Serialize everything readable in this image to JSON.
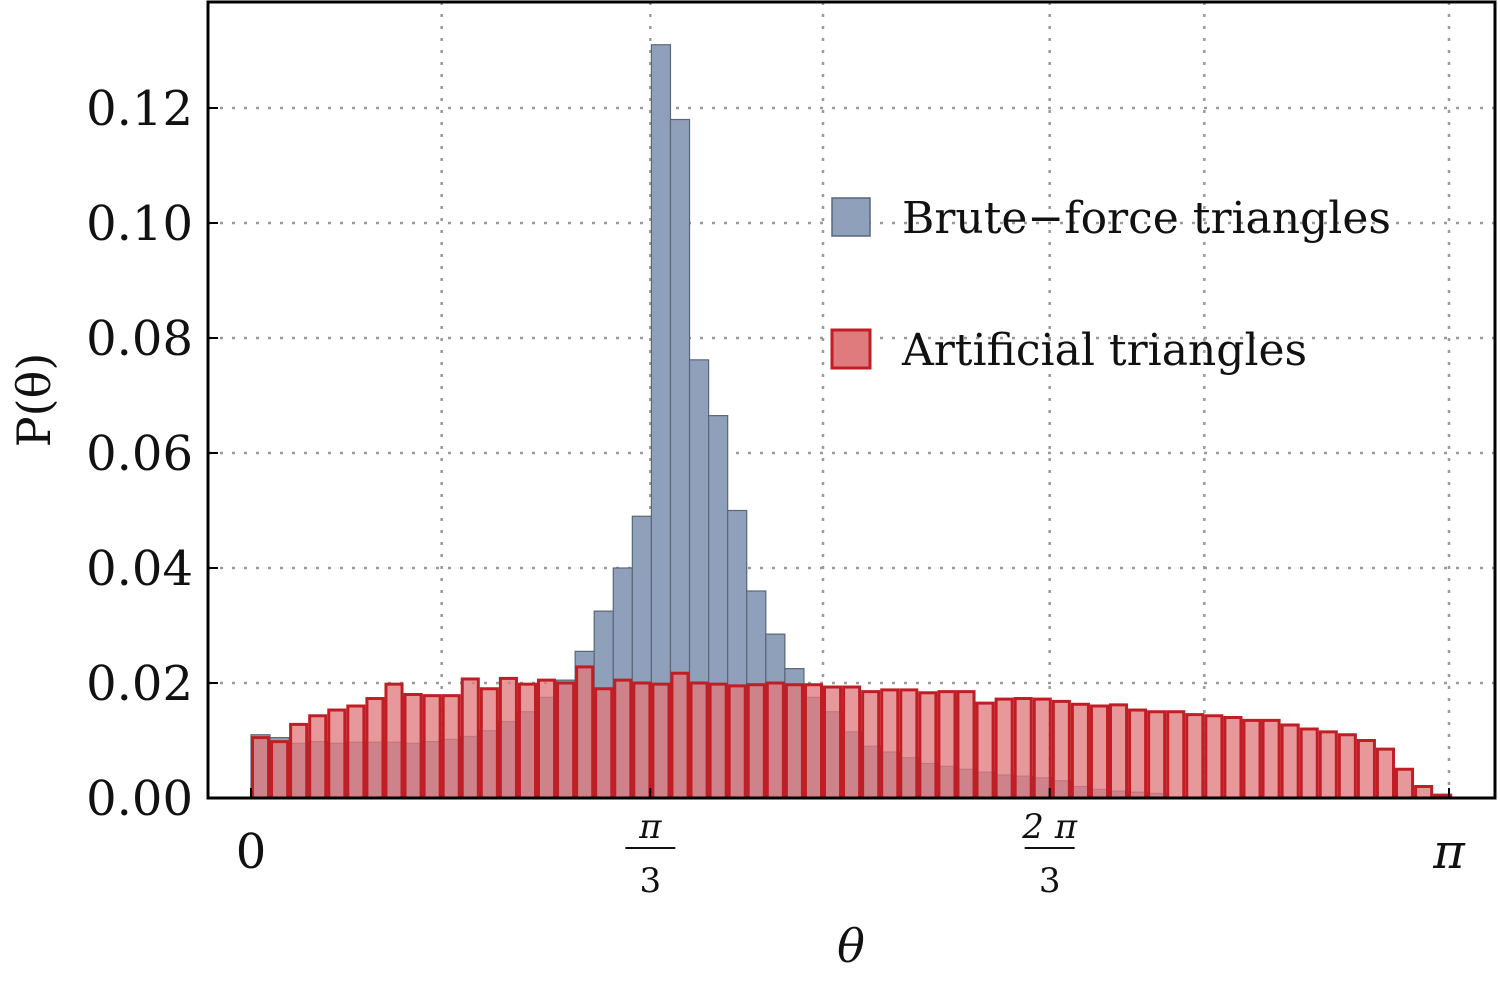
{
  "chart_data": {
    "type": "bar",
    "title": "",
    "xlabel": "θ",
    "ylabel": "P(θ)",
    "xlim": [
      0,
      3.1416
    ],
    "ylim": [
      0,
      0.138
    ],
    "bin_width": 0.05,
    "grid": true,
    "legend_position": "upper-right",
    "x_ticks": [
      {
        "value": 0,
        "label": "0"
      },
      {
        "value": 1.0472,
        "num": "π",
        "den": "3"
      },
      {
        "value": 2.0944,
        "num": "2 π",
        "den": "3"
      },
      {
        "value": 3.1416,
        "label": "π"
      }
    ],
    "y_ticks": [
      {
        "value": 0.0,
        "label": "0.00"
      },
      {
        "value": 0.02,
        "label": "0.02"
      },
      {
        "value": 0.04,
        "label": "0.04"
      },
      {
        "value": 0.06,
        "label": "0.06"
      },
      {
        "value": 0.08,
        "label": "0.08"
      },
      {
        "value": 0.1,
        "label": "0.10"
      },
      {
        "value": 0.12,
        "label": "0.12"
      }
    ],
    "series": [
      {
        "name": "Brute−force triangles",
        "fill": "#8fa0ba",
        "stroke": "#5a6778",
        "bin_starts": [
          0.0,
          0.05,
          0.1,
          0.15,
          0.2,
          0.25,
          0.3,
          0.35,
          0.4,
          0.45,
          0.5,
          0.55,
          0.6,
          0.65,
          0.7,
          0.75,
          0.8,
          0.85,
          0.9,
          0.95,
          1.0,
          1.05,
          1.1,
          1.15,
          1.2,
          1.25,
          1.3,
          1.35,
          1.4,
          1.45,
          1.5,
          1.55,
          1.6,
          1.65,
          1.7,
          1.75,
          1.8,
          1.85,
          1.9,
          1.95,
          2.0,
          2.05,
          2.1,
          2.15,
          2.2,
          2.25,
          2.3,
          2.35
        ],
        "values": [
          0.011,
          0.0105,
          0.0095,
          0.0098,
          0.0095,
          0.0097,
          0.0097,
          0.0097,
          0.0095,
          0.0098,
          0.0102,
          0.0107,
          0.0117,
          0.0133,
          0.015,
          0.0175,
          0.0205,
          0.0255,
          0.0325,
          0.04,
          0.049,
          0.131,
          0.118,
          0.0762,
          0.0665,
          0.05,
          0.036,
          0.0285,
          0.0225,
          0.0175,
          0.015,
          0.0115,
          0.009,
          0.008,
          0.007,
          0.006,
          0.0055,
          0.005,
          0.0045,
          0.004,
          0.0038,
          0.0035,
          0.003,
          0.002,
          0.0015,
          0.0012,
          0.001,
          0.0008
        ]
      },
      {
        "name": "Artificial triangles",
        "fill": "#e07b7d",
        "stroke": "#c01e24",
        "bin_starts": [
          0.0,
          0.05,
          0.1,
          0.15,
          0.2,
          0.25,
          0.3,
          0.35,
          0.4,
          0.45,
          0.5,
          0.55,
          0.6,
          0.65,
          0.7,
          0.75,
          0.8,
          0.85,
          0.9,
          0.95,
          1.0,
          1.05,
          1.1,
          1.15,
          1.2,
          1.25,
          1.3,
          1.35,
          1.4,
          1.45,
          1.5,
          1.55,
          1.6,
          1.65,
          1.7,
          1.75,
          1.8,
          1.85,
          1.9,
          1.95,
          2.0,
          2.05,
          2.1,
          2.15,
          2.2,
          2.25,
          2.3,
          2.35,
          2.4,
          2.45,
          2.5,
          2.55,
          2.6,
          2.65,
          2.7,
          2.75,
          2.8,
          2.85,
          2.9,
          2.95,
          3.0,
          3.05,
          3.1
        ],
        "values": [
          0.0105,
          0.0098,
          0.0128,
          0.0143,
          0.0153,
          0.016,
          0.0173,
          0.0198,
          0.018,
          0.0178,
          0.0178,
          0.0207,
          0.019,
          0.0208,
          0.0198,
          0.0205,
          0.02,
          0.0228,
          0.019,
          0.0205,
          0.02,
          0.0198,
          0.0217,
          0.02,
          0.0198,
          0.0195,
          0.0197,
          0.02,
          0.0197,
          0.0197,
          0.0193,
          0.0193,
          0.0185,
          0.0188,
          0.0188,
          0.0183,
          0.0185,
          0.0185,
          0.0165,
          0.0172,
          0.0173,
          0.0172,
          0.0168,
          0.0163,
          0.016,
          0.0162,
          0.0153,
          0.015,
          0.015,
          0.0145,
          0.0143,
          0.014,
          0.0135,
          0.0135,
          0.0127,
          0.012,
          0.0115,
          0.011,
          0.01,
          0.0085,
          0.005,
          0.002,
          0.0005
        ]
      }
    ]
  }
}
